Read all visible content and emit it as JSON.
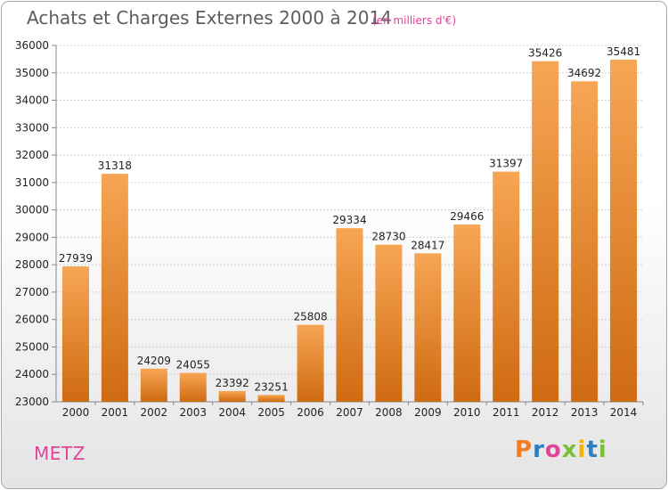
{
  "header": {
    "title": "Achats et Charges Externes 2000 à 2014",
    "subtitle": "(en milliers d'€)"
  },
  "footer": {
    "city": "METZ",
    "logo_text": "Proxiti"
  },
  "colors": {
    "bar_light": "#f7a654",
    "bar_dark": "#cf6a12",
    "accent": "#e0449a",
    "logo": [
      "#f47b20",
      "#2b7fc3",
      "#e0449a",
      "#7cbf3a",
      "#f5b400",
      "#2b7fc3",
      "#7cbf3a"
    ]
  },
  "chart_data": {
    "type": "bar",
    "title": "Achats et Charges Externes 2000 à 2014",
    "subtitle": "(en milliers d'€)",
    "categories": [
      "2000",
      "2001",
      "2002",
      "2003",
      "2004",
      "2005",
      "2006",
      "2007",
      "2008",
      "2009",
      "2010",
      "2011",
      "2012",
      "2013",
      "2014"
    ],
    "values": [
      27939,
      31318,
      24209,
      24055,
      23392,
      23251,
      25808,
      29334,
      28730,
      28417,
      29466,
      31397,
      35426,
      34692,
      35481
    ],
    "ylim": [
      23000,
      36000
    ],
    "yticks": [
      23000,
      24000,
      25000,
      26000,
      27000,
      28000,
      29000,
      30000,
      31000,
      32000,
      33000,
      34000,
      35000,
      36000
    ],
    "grid": true,
    "xlabel": "",
    "ylabel": ""
  }
}
